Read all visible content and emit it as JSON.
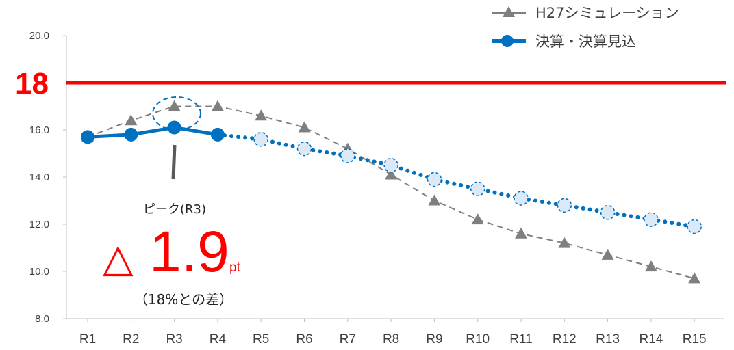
{
  "chart_data": {
    "type": "line",
    "categories": [
      "R1",
      "R2",
      "R3",
      "R4",
      "R5",
      "R6",
      "R7",
      "R8",
      "R9",
      "R10",
      "R11",
      "R12",
      "R13",
      "R14",
      "R15"
    ],
    "y_ticks": [
      "20.0",
      "16.0",
      "14.0",
      "12.0",
      "10.0",
      "8.0"
    ],
    "ylim": [
      8,
      20
    ],
    "grid": false,
    "legend_position": "top-right",
    "reference_line": {
      "value": 18,
      "label": "18",
      "color": "#ff0000"
    },
    "series": [
      {
        "name": "H27シミュレーション",
        "color": "#7f7f7f",
        "marker": "triangle",
        "style": "dashed",
        "values": [
          15.7,
          16.4,
          17.0,
          17.0,
          16.6,
          16.1,
          15.2,
          14.1,
          13.0,
          12.2,
          11.6,
          11.2,
          10.7,
          10.2,
          9.7
        ]
      },
      {
        "name": "決算・決算見込",
        "color": "#0070c0",
        "marker": "circle",
        "style": "solid-then-dotted",
        "solid_until_index": 3,
        "values": [
          15.7,
          15.8,
          16.1,
          15.8,
          15.6,
          15.2,
          14.9,
          14.5,
          13.9,
          13.5,
          13.1,
          12.8,
          12.5,
          12.2,
          11.9
        ]
      }
    ],
    "annotation": {
      "peak_label": "ピーク(R3)",
      "triangle": "△",
      "value": "1.9",
      "unit": "pt",
      "note": "（18%との差）",
      "target_index": 2
    }
  }
}
